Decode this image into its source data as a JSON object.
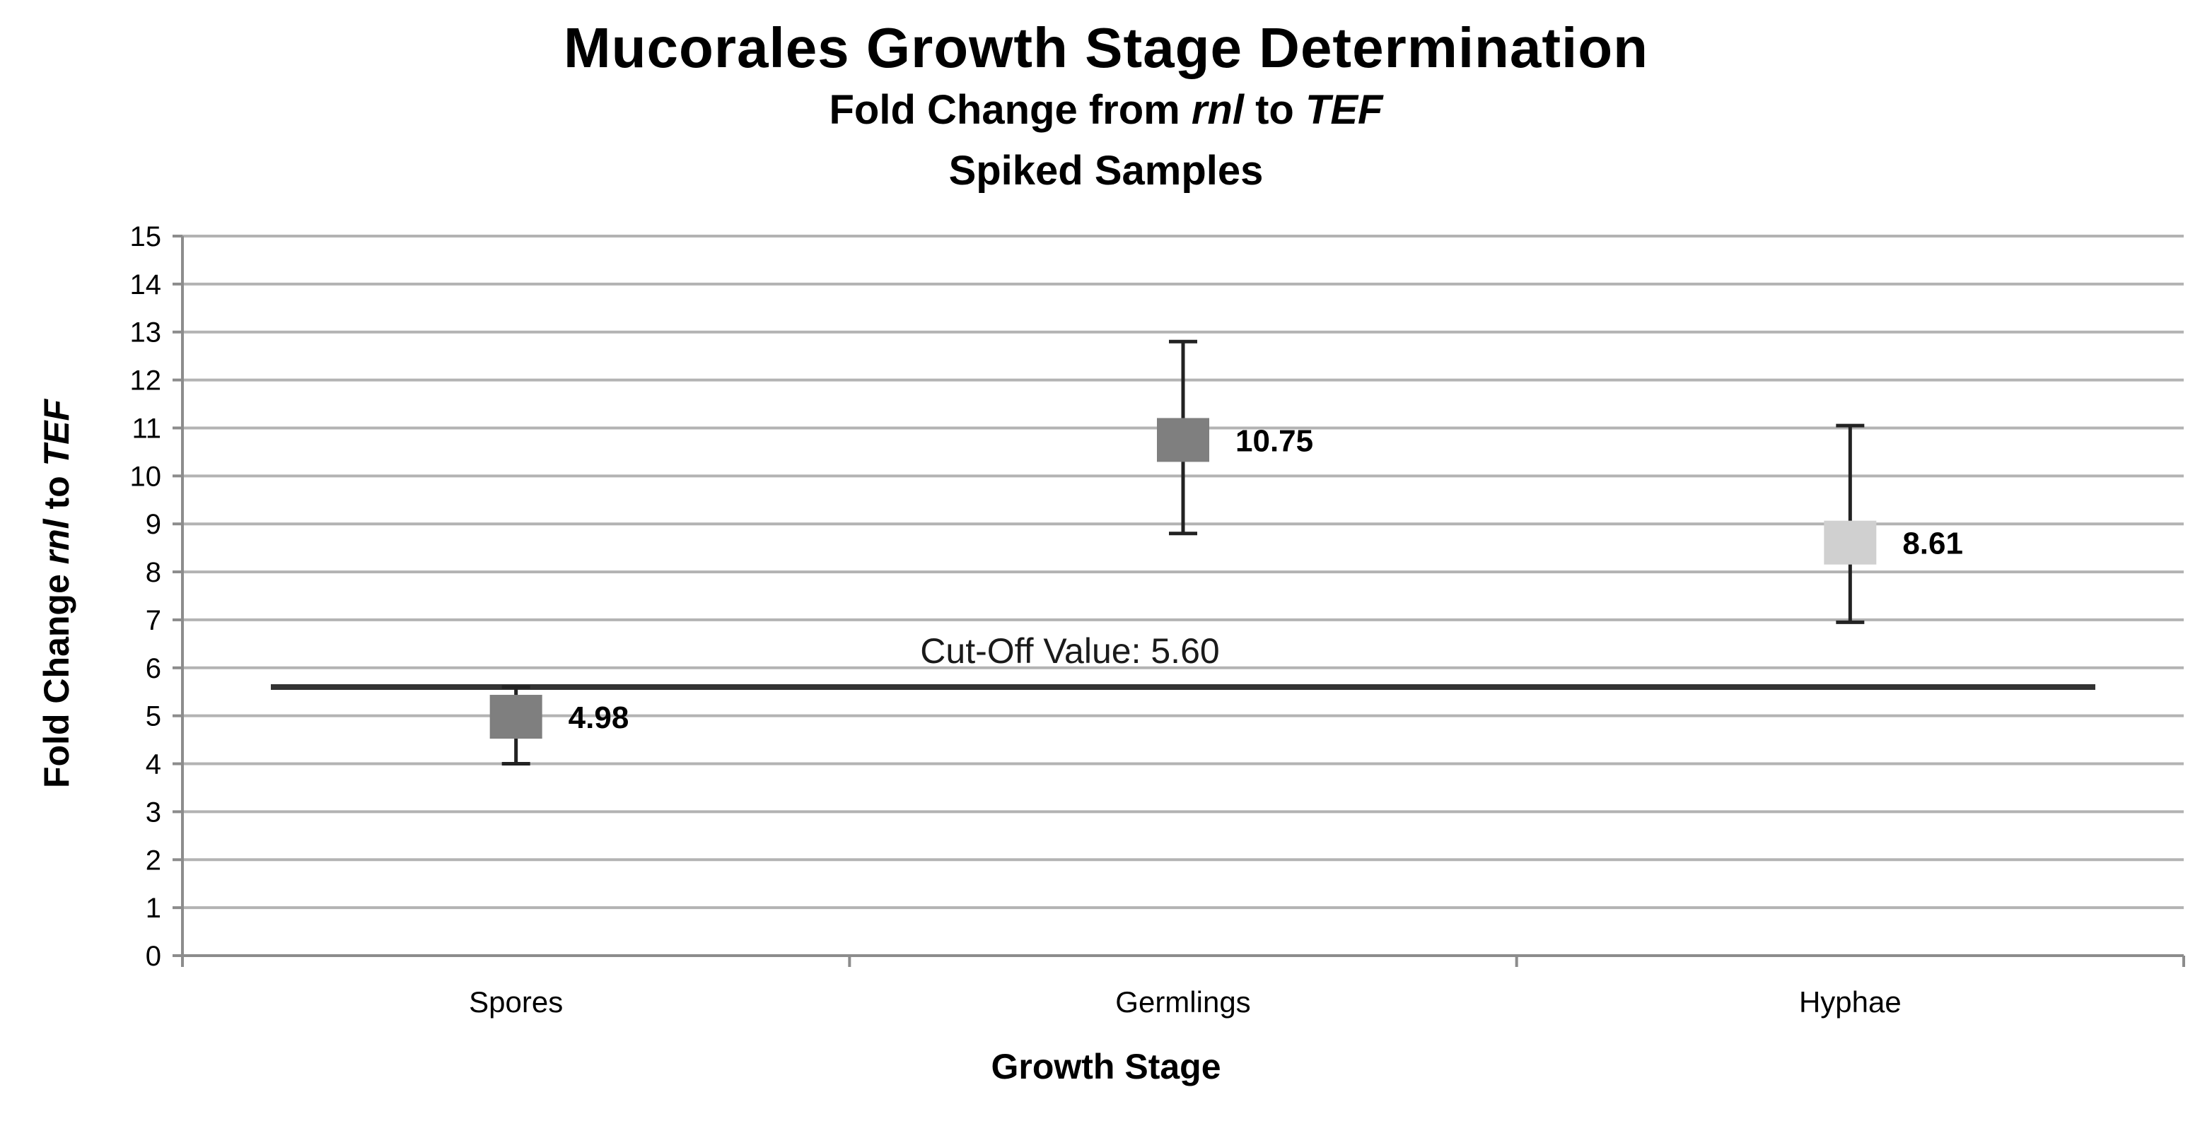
{
  "chart_data": {
    "type": "scatter",
    "title": "Mucorales Growth Stage Determination",
    "subtitle": {
      "prefix": "Fold Change from ",
      "italic1": "rnl",
      "middle": " to ",
      "italic2": "TEF"
    },
    "subtitle2": "Spiked Samples",
    "xlabel": "Growth Stage",
    "ylabel": {
      "prefix": "Fold Change ",
      "italic1": "rnl",
      "middle": " to ",
      "italic2": "TEF"
    },
    "categories": [
      "Spores",
      "Germlings",
      "Hyphae"
    ],
    "points": [
      {
        "category": "Spores",
        "value": 4.98,
        "label": "4.98",
        "err_low": 4.0,
        "err_high": 5.6,
        "color": "#7f7f7f"
      },
      {
        "category": "Germlings",
        "value": 10.75,
        "label": "10.75",
        "err_low": 8.8,
        "err_high": 12.8,
        "color": "#7f7f7f"
      },
      {
        "category": "Hyphae",
        "value": 8.61,
        "label": "8.61",
        "err_low": 6.95,
        "err_high": 11.05,
        "color": "#d0d0d0"
      }
    ],
    "reference_line": {
      "value": 5.6,
      "label": "Cut-Off Value: 5.60",
      "color": "#333333"
    },
    "ylim": [
      0,
      15
    ],
    "yticks": [
      0,
      1,
      2,
      3,
      4,
      5,
      6,
      7,
      8,
      9,
      10,
      11,
      12,
      13,
      14,
      15
    ],
    "grid": true,
    "legend": "none"
  }
}
